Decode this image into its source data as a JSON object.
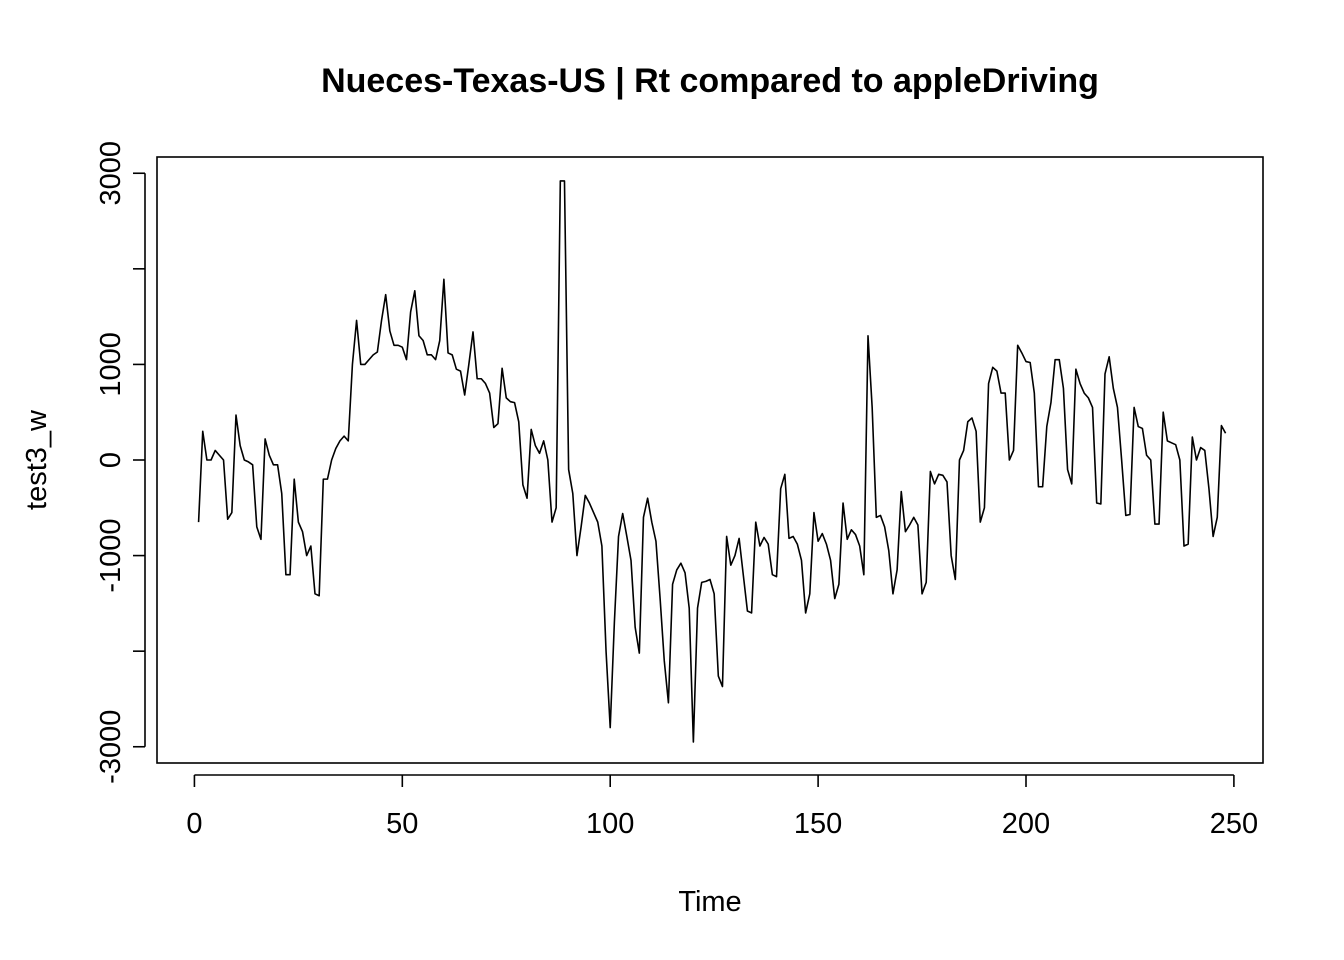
{
  "chart_data": {
    "type": "line",
    "title": "Nueces-Texas-US | Rt compared to appleDriving",
    "xlabel": "Time",
    "ylabel": "test3_w",
    "xlim": [
      -9,
      257
    ],
    "ylim": [
      -3170,
      3170
    ],
    "x_ticks": [
      0,
      50,
      100,
      150,
      200,
      250
    ],
    "x_tick_labels": [
      "0",
      "50",
      "100",
      "150",
      "200",
      "250"
    ],
    "y_ticks": [
      -3000,
      -2000,
      -1000,
      0,
      1000,
      2000,
      3000
    ],
    "y_tick_labels": [
      "-3000",
      "",
      "-1000",
      "0",
      "1000",
      "",
      "3000"
    ],
    "grid": false,
    "legend": "none",
    "series": [
      {
        "color": "#000000",
        "x_start": 1,
        "values": [
          -650,
          300,
          0,
          0,
          100,
          50,
          0,
          -620,
          -550,
          470,
          150,
          0,
          -20,
          -50,
          -700,
          -830,
          220,
          50,
          -50,
          -50,
          -350,
          -1200,
          -1200,
          -200,
          -650,
          -750,
          -1000,
          -900,
          -1400,
          -1420,
          -200,
          -200,
          0,
          120,
          200,
          250,
          200,
          1000,
          1460,
          1000,
          1000,
          1050,
          1100,
          1130,
          1460,
          1730,
          1350,
          1200,
          1200,
          1180,
          1050,
          1550,
          1770,
          1300,
          1250,
          1100,
          1100,
          1050,
          1250,
          1890,
          1120,
          1100,
          950,
          930,
          680,
          1000,
          1340,
          850,
          850,
          800,
          700,
          340,
          380,
          960,
          650,
          610,
          600,
          400,
          -260,
          -400,
          320,
          150,
          70,
          200,
          0,
          -650,
          -500,
          2920,
          2920,
          -100,
          -350,
          -1000,
          -700,
          -370,
          -450,
          -550,
          -650,
          -900,
          -2000,
          -2800,
          -1700,
          -800,
          -560,
          -800,
          -1050,
          -1750,
          -2020,
          -600,
          -400,
          -650,
          -850,
          -1450,
          -2100,
          -2540,
          -1300,
          -1150,
          -1080,
          -1180,
          -1550,
          -2950,
          -1550,
          -1280,
          -1270,
          -1250,
          -1400,
          -2260,
          -2370,
          -800,
          -1100,
          -1000,
          -820,
          -1200,
          -1580,
          -1600,
          -650,
          -900,
          -810,
          -880,
          -1200,
          -1220,
          -300,
          -150,
          -820,
          -800,
          -880,
          -1050,
          -1600,
          -1400,
          -550,
          -850,
          -770,
          -880,
          -1050,
          -1450,
          -1300,
          -450,
          -830,
          -730,
          -780,
          -900,
          -1200,
          1300,
          550,
          -600,
          -580,
          -700,
          -950,
          -1400,
          -1150,
          -330,
          -750,
          -680,
          -600,
          -680,
          -1400,
          -1280,
          -120,
          -250,
          -150,
          -160,
          -230,
          -1000,
          -1250,
          0,
          100,
          400,
          440,
          300,
          -650,
          -500,
          800,
          970,
          930,
          700,
          700,
          0,
          100,
          1200,
          1120,
          1030,
          1020,
          700,
          -280,
          -280,
          350,
          600,
          1050,
          1050,
          750,
          -100,
          -250,
          950,
          800,
          700,
          650,
          550,
          -450,
          -460,
          900,
          1080,
          750,
          550,
          0,
          -580,
          -570,
          550,
          350,
          330,
          50,
          0,
          -670,
          -670,
          500,
          200,
          180,
          160,
          0,
          -900,
          -880,
          240,
          0,
          130,
          100,
          -300,
          -800,
          -600,
          360,
          280
        ]
      }
    ]
  }
}
